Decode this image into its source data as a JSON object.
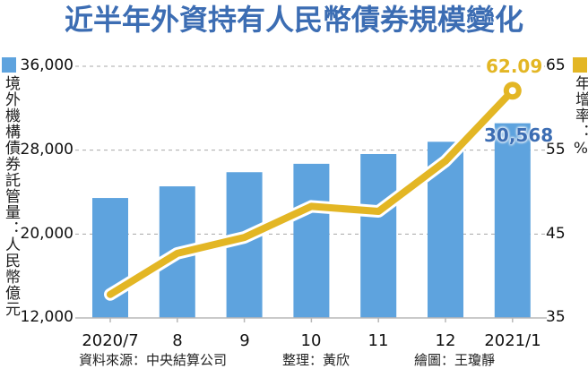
{
  "title": "近半年外資持有人民幣債券規模變化",
  "left_axis": {
    "label": "境外機構債券託管量：人民幣億元",
    "ticks": [
      "36,000",
      "28,000",
      "20,000",
      "12,000"
    ]
  },
  "right_axis": {
    "label": "年增率：%",
    "ticks": [
      "65",
      "55",
      "45",
      "35"
    ]
  },
  "x_axis": {
    "ticks": [
      "2020/7",
      "8",
      "9",
      "10",
      "11",
      "12",
      "2021/1"
    ]
  },
  "annotations": {
    "bar_last": "30,568",
    "line_last": "62.09"
  },
  "footer": {
    "source": "資料來源：中央結算公司",
    "compiled": "整理：黃欣",
    "drawn": "繪圖：王瓊靜"
  },
  "colors": {
    "bar": "#5ea3de",
    "line": "#e3b624",
    "title": "#3c6db3"
  },
  "chart_data": {
    "type": "bar+line",
    "title": "近半年外資持有人民幣債券規模變化",
    "categories": [
      "2020/7",
      "8",
      "9",
      "10",
      "11",
      "12",
      "2021/1"
    ],
    "series": [
      {
        "name": "境外機構債券託管量（人民幣億元）",
        "type": "bar",
        "axis": "left",
        "values": [
          23440,
          24550,
          25900,
          26700,
          27630,
          28800,
          30568
        ]
      },
      {
        "name": "年增率（%）",
        "type": "line",
        "axis": "right",
        "values": [
          37.8,
          42.7,
          44.6,
          48.3,
          47.7,
          53.7,
          62.09
        ]
      }
    ],
    "ylabel": "境外機構債券託管量：人民幣億元",
    "ylabel_right": "年增率：%",
    "ylim": [
      12000,
      36000
    ],
    "ylim_right": [
      35,
      65
    ],
    "yticks": [
      12000,
      20000,
      28000,
      36000
    ],
    "yticks_right": [
      35,
      45,
      55,
      65
    ],
    "grid": "dashed horizontal",
    "data_labels": {
      "2021/1_bar": "30,568",
      "2021/1_line": "62.09"
    },
    "legend": "color squares at top of each axis label"
  }
}
